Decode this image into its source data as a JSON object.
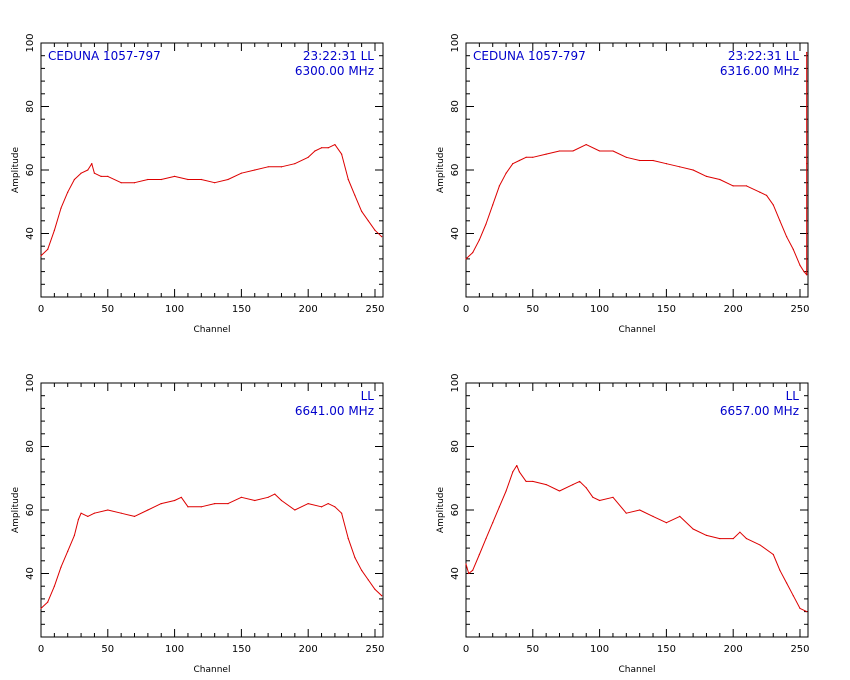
{
  "colors": {
    "trace": "#dd0000",
    "annotation": "#0000cc",
    "axes": "#000000",
    "background": "#ffffff"
  },
  "chart_data": [
    {
      "type": "line",
      "xlabel": "Channel",
      "ylabel": "Amplitude",
      "xlim": [
        0,
        256
      ],
      "ylim": [
        20,
        100
      ],
      "xticks": [
        0,
        50,
        100,
        150,
        200,
        250
      ],
      "yticks": [
        40,
        60,
        80,
        100
      ],
      "grid": false,
      "annotation_left": "CEDUNA 1057-797",
      "annotation_right": [
        "23:22:31  LL",
        "6300.00 MHz"
      ],
      "series": [
        {
          "x": [
            0,
            5,
            10,
            15,
            20,
            25,
            30,
            35,
            38,
            40,
            45,
            50,
            60,
            70,
            80,
            90,
            100,
            110,
            120,
            130,
            140,
            150,
            160,
            170,
            180,
            190,
            200,
            205,
            210,
            215,
            220,
            225,
            230,
            235,
            240,
            245,
            250,
            255
          ],
          "y": [
            33,
            35,
            41,
            48,
            53,
            57,
            59,
            60,
            62,
            59,
            58,
            58,
            56,
            56,
            57,
            57,
            58,
            57,
            57,
            56,
            57,
            59,
            60,
            61,
            61,
            62,
            64,
            66,
            67,
            67,
            68,
            65,
            57,
            52,
            47,
            44,
            41,
            39
          ]
        }
      ]
    },
    {
      "type": "line",
      "xlabel": "Channel",
      "ylabel": "Amplitude",
      "xlim": [
        0,
        256
      ],
      "ylim": [
        20,
        100
      ],
      "xticks": [
        0,
        50,
        100,
        150,
        200,
        250
      ],
      "yticks": [
        40,
        60,
        80,
        100
      ],
      "grid": false,
      "annotation_left": "CEDUNA 1057-797",
      "annotation_right": [
        "23:22:31  LL",
        "6316.00 MHz"
      ],
      "series": [
        {
          "x": [
            0,
            5,
            10,
            15,
            20,
            25,
            30,
            35,
            40,
            45,
            50,
            60,
            70,
            80,
            90,
            100,
            110,
            120,
            130,
            140,
            150,
            160,
            170,
            180,
            190,
            200,
            210,
            220,
            225,
            230,
            235,
            240,
            245,
            250,
            253,
            255,
            255,
            255
          ],
          "y": [
            32,
            34,
            38,
            43,
            49,
            55,
            59,
            62,
            63,
            64,
            64,
            65,
            66,
            66,
            68,
            66,
            66,
            64,
            63,
            63,
            62,
            61,
            60,
            58,
            57,
            55,
            55,
            53,
            52,
            49,
            44,
            39,
            35,
            30,
            28,
            27,
            62,
            97
          ]
        }
      ]
    },
    {
      "type": "line",
      "xlabel": "Channel",
      "ylabel": "Amplitude",
      "xlim": [
        0,
        256
      ],
      "ylim": [
        20,
        100
      ],
      "xticks": [
        0,
        50,
        100,
        150,
        200,
        250
      ],
      "yticks": [
        40,
        60,
        80,
        100
      ],
      "grid": false,
      "annotation_right": [
        "LL",
        "6641.00 MHz"
      ],
      "series": [
        {
          "x": [
            0,
            5,
            10,
            15,
            20,
            25,
            28,
            30,
            35,
            40,
            50,
            60,
            70,
            80,
            90,
            100,
            105,
            110,
            120,
            130,
            140,
            150,
            160,
            170,
            175,
            180,
            190,
            200,
            210,
            215,
            220,
            225,
            230,
            235,
            240,
            245,
            250,
            255
          ],
          "y": [
            29,
            31,
            36,
            42,
            47,
            52,
            57,
            59,
            58,
            59,
            60,
            59,
            58,
            60,
            62,
            63,
            64,
            61,
            61,
            62,
            62,
            64,
            63,
            64,
            65,
            63,
            60,
            62,
            61,
            62,
            61,
            59,
            51,
            45,
            41,
            38,
            35,
            33
          ]
        }
      ]
    },
    {
      "type": "line",
      "xlabel": "Channel",
      "ylabel": "Amplitude",
      "xlim": [
        0,
        256
      ],
      "ylim": [
        20,
        100
      ],
      "xticks": [
        0,
        50,
        100,
        150,
        200,
        250
      ],
      "yticks": [
        40,
        60,
        80,
        100
      ],
      "grid": false,
      "annotation_right": [
        "LL",
        "6657.00 MHz"
      ],
      "series": [
        {
          "x": [
            0,
            2,
            5,
            10,
            15,
            20,
            25,
            30,
            35,
            38,
            40,
            45,
            50,
            60,
            70,
            80,
            85,
            90,
            95,
            100,
            110,
            120,
            130,
            140,
            150,
            160,
            170,
            180,
            190,
            200,
            205,
            210,
            220,
            230,
            235,
            240,
            245,
            250,
            255
          ],
          "y": [
            43,
            40,
            41,
            46,
            51,
            56,
            61,
            66,
            72,
            74,
            72,
            69,
            69,
            68,
            66,
            68,
            69,
            67,
            64,
            63,
            64,
            59,
            60,
            58,
            56,
            58,
            54,
            52,
            51,
            51,
            53,
            51,
            49,
            46,
            41,
            37,
            33,
            29,
            28
          ]
        }
      ]
    }
  ]
}
